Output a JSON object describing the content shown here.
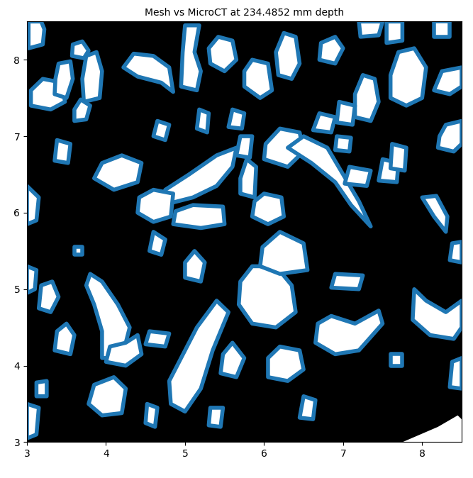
{
  "chart_data": {
    "type": "overlay",
    "title": "Mesh vs MicroCT at 234.4852 mm depth",
    "xlim": [
      3,
      8.5
    ],
    "ylim": [
      3,
      8.5
    ],
    "xticks": [
      3,
      4,
      5,
      6,
      7,
      8
    ],
    "yticks": [
      3,
      4,
      5,
      6,
      7,
      8
    ],
    "color": "#1f77b4",
    "mesh_regions": [
      [
        [
          3.02,
          8.15
        ],
        [
          3.2,
          8.2
        ],
        [
          3.22,
          8.4
        ],
        [
          3.18,
          8.5
        ],
        [
          3.02,
          8.5
        ]
      ],
      [
        [
          3.57,
          8.05
        ],
        [
          3.72,
          8.02
        ],
        [
          3.78,
          8.12
        ],
        [
          3.7,
          8.24
        ],
        [
          3.58,
          8.2
        ]
      ],
      [
        [
          3.05,
          7.4
        ],
        [
          3.3,
          7.35
        ],
        [
          3.48,
          7.45
        ],
        [
          3.45,
          7.7
        ],
        [
          3.2,
          7.75
        ],
        [
          3.05,
          7.6
        ]
      ],
      [
        [
          3.35,
          7.55
        ],
        [
          3.5,
          7.5
        ],
        [
          3.58,
          7.75
        ],
        [
          3.55,
          7.98
        ],
        [
          3.4,
          7.95
        ],
        [
          3.36,
          7.75
        ]
      ],
      [
        [
          3.72,
          7.45
        ],
        [
          3.92,
          7.5
        ],
        [
          3.95,
          7.85
        ],
        [
          3.88,
          8.1
        ],
        [
          3.75,
          8.05
        ],
        [
          3.7,
          7.75
        ]
      ],
      [
        [
          3.6,
          7.2
        ],
        [
          3.75,
          7.22
        ],
        [
          3.8,
          7.4
        ],
        [
          3.68,
          7.48
        ],
        [
          3.6,
          7.35
        ]
      ],
      [
        [
          4.22,
          7.9
        ],
        [
          4.4,
          7.78
        ],
        [
          4.7,
          7.7
        ],
        [
          4.85,
          7.58
        ],
        [
          4.8,
          7.9
        ],
        [
          4.6,
          8.05
        ],
        [
          4.35,
          8.08
        ]
      ],
      [
        [
          4.95,
          7.65
        ],
        [
          5.15,
          7.6
        ],
        [
          5.2,
          7.85
        ],
        [
          5.12,
          8.1
        ],
        [
          5.18,
          8.45
        ],
        [
          5.0,
          8.45
        ],
        [
          4.97,
          8.1
        ]
      ],
      [
        [
          5.32,
          7.95
        ],
        [
          5.5,
          7.85
        ],
        [
          5.65,
          8.0
        ],
        [
          5.6,
          8.25
        ],
        [
          5.42,
          8.3
        ],
        [
          5.3,
          8.15
        ]
      ],
      [
        [
          5.75,
          7.65
        ],
        [
          5.95,
          7.5
        ],
        [
          6.1,
          7.6
        ],
        [
          6.05,
          7.95
        ],
        [
          5.85,
          8.0
        ],
        [
          5.75,
          7.85
        ]
      ],
      [
        [
          6.18,
          7.8
        ],
        [
          6.35,
          7.75
        ],
        [
          6.45,
          7.95
        ],
        [
          6.4,
          8.3
        ],
        [
          6.25,
          8.35
        ],
        [
          6.15,
          8.1
        ]
      ],
      [
        [
          6.7,
          8.0
        ],
        [
          6.9,
          7.95
        ],
        [
          7.0,
          8.15
        ],
        [
          6.9,
          8.3
        ],
        [
          6.72,
          8.22
        ]
      ],
      [
        [
          7.22,
          8.3
        ],
        [
          7.45,
          8.32
        ],
        [
          7.5,
          8.5
        ],
        [
          7.2,
          8.5
        ]
      ],
      [
        [
          7.55,
          8.22
        ],
        [
          7.75,
          8.25
        ],
        [
          7.75,
          8.5
        ],
        [
          7.55,
          8.5
        ]
      ],
      [
        [
          7.15,
          7.25
        ],
        [
          7.35,
          7.2
        ],
        [
          7.45,
          7.45
        ],
        [
          7.4,
          7.75
        ],
        [
          7.25,
          7.8
        ],
        [
          7.15,
          7.55
        ]
      ],
      [
        [
          7.6,
          7.5
        ],
        [
          7.8,
          7.4
        ],
        [
          8.0,
          7.5
        ],
        [
          8.05,
          7.9
        ],
        [
          7.9,
          8.15
        ],
        [
          7.7,
          8.1
        ],
        [
          7.6,
          7.8
        ]
      ],
      [
        [
          8.15,
          8.3
        ],
        [
          8.35,
          8.3
        ],
        [
          8.35,
          8.5
        ],
        [
          8.15,
          8.5
        ]
      ],
      [
        [
          8.15,
          7.6
        ],
        [
          8.35,
          7.55
        ],
        [
          8.5,
          7.65
        ],
        [
          8.5,
          7.9
        ],
        [
          8.25,
          7.85
        ]
      ],
      [
        [
          8.2,
          6.85
        ],
        [
          8.4,
          6.8
        ],
        [
          8.5,
          6.9
        ],
        [
          8.5,
          7.2
        ],
        [
          8.3,
          7.15
        ],
        [
          8.22,
          7.0
        ]
      ],
      [
        [
          5.15,
          7.1
        ],
        [
          5.28,
          7.05
        ],
        [
          5.3,
          7.3
        ],
        [
          5.18,
          7.35
        ]
      ],
      [
        [
          5.55,
          7.12
        ],
        [
          5.72,
          7.1
        ],
        [
          5.75,
          7.3
        ],
        [
          5.6,
          7.35
        ]
      ],
      [
        [
          4.6,
          7.0
        ],
        [
          4.75,
          6.95
        ],
        [
          4.8,
          7.15
        ],
        [
          4.65,
          7.2
        ]
      ],
      [
        [
          4.72,
          6.1
        ],
        [
          5.1,
          6.2
        ],
        [
          5.4,
          6.35
        ],
        [
          5.6,
          6.6
        ],
        [
          5.65,
          6.85
        ],
        [
          5.4,
          6.75
        ],
        [
          5.05,
          6.5
        ],
        [
          4.75,
          6.3
        ]
      ],
      [
        [
          5.7,
          6.25
        ],
        [
          5.88,
          6.2
        ],
        [
          5.9,
          6.6
        ],
        [
          5.78,
          6.7
        ],
        [
          5.7,
          6.45
        ]
      ],
      [
        [
          5.65,
          6.75
        ],
        [
          5.82,
          6.72
        ],
        [
          5.85,
          7.0
        ],
        [
          5.7,
          7.0
        ]
      ],
      [
        [
          6.0,
          6.7
        ],
        [
          6.3,
          6.6
        ],
        [
          6.5,
          6.8
        ],
        [
          6.45,
          7.05
        ],
        [
          6.2,
          7.1
        ],
        [
          6.02,
          6.9
        ]
      ],
      [
        [
          6.3,
          6.85
        ],
        [
          6.6,
          6.65
        ],
        [
          6.9,
          6.4
        ],
        [
          7.1,
          6.1
        ],
        [
          7.35,
          5.82
        ],
        [
          7.2,
          6.15
        ],
        [
          7.0,
          6.5
        ],
        [
          6.8,
          6.85
        ],
        [
          6.5,
          7.0
        ]
      ],
      [
        [
          6.62,
          7.08
        ],
        [
          6.85,
          7.05
        ],
        [
          6.9,
          7.25
        ],
        [
          6.7,
          7.3
        ]
      ],
      [
        [
          6.92,
          7.18
        ],
        [
          7.12,
          7.15
        ],
        [
          7.15,
          7.4
        ],
        [
          6.95,
          7.45
        ]
      ],
      [
        [
          6.9,
          6.82
        ],
        [
          7.08,
          6.8
        ],
        [
          7.1,
          6.98
        ],
        [
          6.92,
          7.0
        ]
      ],
      [
        [
          7.02,
          6.38
        ],
        [
          7.3,
          6.35
        ],
        [
          7.35,
          6.55
        ],
        [
          7.08,
          6.6
        ]
      ],
      [
        [
          7.45,
          6.42
        ],
        [
          7.68,
          6.4
        ],
        [
          7.7,
          6.65
        ],
        [
          7.5,
          6.7
        ]
      ],
      [
        [
          7.6,
          6.58
        ],
        [
          7.78,
          6.55
        ],
        [
          7.8,
          6.85
        ],
        [
          7.62,
          6.9
        ]
      ],
      [
        [
          8.0,
          6.2
        ],
        [
          8.15,
          5.95
        ],
        [
          8.3,
          5.75
        ],
        [
          8.32,
          5.95
        ],
        [
          8.18,
          6.22
        ]
      ],
      [
        [
          8.35,
          5.38
        ],
        [
          8.5,
          5.35
        ],
        [
          8.5,
          5.62
        ],
        [
          8.38,
          5.6
        ]
      ],
      [
        [
          3.0,
          5.85
        ],
        [
          3.12,
          5.9
        ],
        [
          3.15,
          6.2
        ],
        [
          3.0,
          6.35
        ]
      ],
      [
        [
          3.35,
          6.68
        ],
        [
          3.52,
          6.65
        ],
        [
          3.55,
          6.9
        ],
        [
          3.38,
          6.95
        ]
      ],
      [
        [
          3.85,
          6.45
        ],
        [
          4.1,
          6.3
        ],
        [
          4.4,
          6.4
        ],
        [
          4.45,
          6.65
        ],
        [
          4.2,
          6.75
        ],
        [
          3.95,
          6.65
        ]
      ],
      [
        [
          4.4,
          6.0
        ],
        [
          4.6,
          5.88
        ],
        [
          4.82,
          5.95
        ],
        [
          4.85,
          6.25
        ],
        [
          4.6,
          6.3
        ],
        [
          4.42,
          6.2
        ]
      ],
      [
        [
          4.55,
          5.5
        ],
        [
          4.7,
          5.45
        ],
        [
          4.75,
          5.65
        ],
        [
          4.6,
          5.75
        ]
      ],
      [
        [
          4.85,
          5.85
        ],
        [
          5.2,
          5.8
        ],
        [
          5.5,
          5.85
        ],
        [
          5.48,
          6.08
        ],
        [
          5.1,
          6.1
        ],
        [
          4.88,
          6.02
        ]
      ],
      [
        [
          5.85,
          5.95
        ],
        [
          6.05,
          5.85
        ],
        [
          6.25,
          5.95
        ],
        [
          6.22,
          6.2
        ],
        [
          6.0,
          6.25
        ],
        [
          5.88,
          6.15
        ]
      ],
      [
        [
          3.6,
          5.45
        ],
        [
          3.7,
          5.45
        ],
        [
          3.7,
          5.55
        ],
        [
          3.6,
          5.55
        ]
      ],
      [
        [
          3.0,
          4.95
        ],
        [
          3.1,
          5.0
        ],
        [
          3.12,
          5.25
        ],
        [
          3.0,
          5.3
        ]
      ],
      [
        [
          3.15,
          4.75
        ],
        [
          3.3,
          4.7
        ],
        [
          3.4,
          4.9
        ],
        [
          3.32,
          5.1
        ],
        [
          3.18,
          5.05
        ]
      ],
      [
        [
          3.75,
          5.05
        ],
        [
          3.85,
          4.8
        ],
        [
          3.95,
          4.45
        ],
        [
          3.95,
          4.1
        ],
        [
          4.2,
          4.1
        ],
        [
          4.3,
          4.5
        ],
        [
          4.15,
          4.8
        ],
        [
          3.95,
          5.1
        ],
        [
          3.8,
          5.2
        ]
      ],
      [
        [
          3.35,
          4.2
        ],
        [
          3.55,
          4.15
        ],
        [
          3.6,
          4.4
        ],
        [
          3.5,
          4.55
        ],
        [
          3.38,
          4.45
        ]
      ],
      [
        [
          4.0,
          4.05
        ],
        [
          4.25,
          4.0
        ],
        [
          4.45,
          4.15
        ],
        [
          4.4,
          4.4
        ],
        [
          4.25,
          4.3
        ],
        [
          4.05,
          4.25
        ]
      ],
      [
        [
          4.5,
          4.28
        ],
        [
          4.75,
          4.25
        ],
        [
          4.8,
          4.42
        ],
        [
          4.55,
          4.45
        ]
      ],
      [
        [
          3.78,
          3.5
        ],
        [
          3.95,
          3.35
        ],
        [
          4.2,
          3.38
        ],
        [
          4.25,
          3.7
        ],
        [
          4.1,
          3.85
        ],
        [
          3.85,
          3.75
        ]
      ],
      [
        [
          3.0,
          3.05
        ],
        [
          3.12,
          3.1
        ],
        [
          3.15,
          3.45
        ],
        [
          3.0,
          3.5
        ]
      ],
      [
        [
          3.12,
          3.6
        ],
        [
          3.25,
          3.6
        ],
        [
          3.25,
          3.8
        ],
        [
          3.12,
          3.78
        ]
      ],
      [
        [
          4.5,
          3.25
        ],
        [
          4.62,
          3.2
        ],
        [
          4.65,
          3.45
        ],
        [
          4.52,
          3.5
        ]
      ],
      [
        [
          5.0,
          5.15
        ],
        [
          5.2,
          5.1
        ],
        [
          5.25,
          5.35
        ],
        [
          5.12,
          5.5
        ],
        [
          5.0,
          5.35
        ]
      ],
      [
        [
          4.82,
          3.5
        ],
        [
          5.0,
          3.4
        ],
        [
          5.2,
          3.7
        ],
        [
          5.35,
          4.2
        ],
        [
          5.55,
          4.7
        ],
        [
          5.4,
          4.85
        ],
        [
          5.15,
          4.5
        ],
        [
          4.95,
          4.1
        ],
        [
          4.8,
          3.8
        ]
      ],
      [
        [
          5.45,
          3.9
        ],
        [
          5.65,
          3.85
        ],
        [
          5.75,
          4.1
        ],
        [
          5.6,
          4.3
        ],
        [
          5.48,
          4.15
        ]
      ],
      [
        [
          5.3,
          3.22
        ],
        [
          5.45,
          3.2
        ],
        [
          5.48,
          3.45
        ],
        [
          5.32,
          3.45
        ]
      ],
      [
        [
          5.68,
          4.8
        ],
        [
          5.85,
          4.55
        ],
        [
          6.15,
          4.5
        ],
        [
          6.4,
          4.7
        ],
        [
          6.35,
          5.05
        ],
        [
          6.15,
          5.3
        ],
        [
          5.85,
          5.3
        ],
        [
          5.7,
          5.1
        ]
      ],
      [
        [
          5.95,
          5.3
        ],
        [
          6.2,
          5.2
        ],
        [
          6.55,
          5.25
        ],
        [
          6.5,
          5.6
        ],
        [
          6.2,
          5.75
        ],
        [
          5.98,
          5.55
        ]
      ],
      [
        [
          6.05,
          3.85
        ],
        [
          6.3,
          3.8
        ],
        [
          6.5,
          3.95
        ],
        [
          6.45,
          4.2
        ],
        [
          6.2,
          4.25
        ],
        [
          6.05,
          4.1
        ]
      ],
      [
        [
          6.65,
          4.3
        ],
        [
          6.9,
          4.15
        ],
        [
          7.2,
          4.2
        ],
        [
          7.5,
          4.55
        ],
        [
          7.45,
          4.72
        ],
        [
          7.15,
          4.55
        ],
        [
          6.85,
          4.65
        ],
        [
          6.68,
          4.55
        ]
      ],
      [
        [
          7.6,
          4.0
        ],
        [
          7.75,
          4.0
        ],
        [
          7.75,
          4.15
        ],
        [
          7.6,
          4.15
        ]
      ],
      [
        [
          6.45,
          3.32
        ],
        [
          6.62,
          3.3
        ],
        [
          6.65,
          3.55
        ],
        [
          6.5,
          3.6
        ]
      ],
      [
        [
          7.88,
          4.6
        ],
        [
          8.1,
          4.4
        ],
        [
          8.4,
          4.35
        ],
        [
          8.5,
          4.5
        ],
        [
          8.5,
          4.85
        ],
        [
          8.3,
          4.7
        ],
        [
          8.05,
          4.85
        ],
        [
          7.9,
          5.0
        ]
      ],
      [
        [
          8.35,
          3.72
        ],
        [
          8.5,
          3.7
        ],
        [
          8.5,
          4.1
        ],
        [
          8.38,
          4.05
        ]
      ],
      [
        [
          6.85,
          5.02
        ],
        [
          7.2,
          5.0
        ],
        [
          7.25,
          5.18
        ],
        [
          6.9,
          5.2
        ]
      ]
    ],
    "microct_regions": [
      [
        [
          7.75,
          3.0
        ],
        [
          8.2,
          3.2
        ],
        [
          8.45,
          3.35
        ],
        [
          8.5,
          3.3
        ],
        [
          8.5,
          3.0
        ]
      ]
    ]
  }
}
